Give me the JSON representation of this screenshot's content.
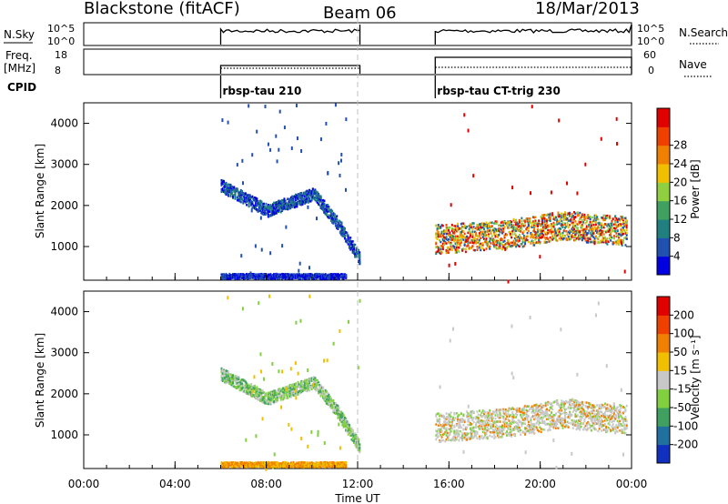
{
  "header": {
    "station": "Blackstone (fitACF)",
    "beam": "Beam 06",
    "date": "18/Mar/2013"
  },
  "top_panel": {
    "nsky_label": "N.Sky",
    "nsky_ticks": [
      "10^5",
      "10^0"
    ],
    "nsearch_label": "N.Search",
    "nsearch_ticks": [
      "10^5",
      "10^0"
    ],
    "freq_label": "Freq.",
    "freq_unit": "[MHz]",
    "freq_ticks": [
      "18",
      "8"
    ],
    "nave_label": "Nave",
    "nave_ticks": [
      "60",
      "0"
    ],
    "cpid_label": "CPID",
    "cpid_entries": [
      {
        "start_h": 6.0,
        "label": "rbsp-tau 210"
      },
      {
        "start_h": 15.4,
        "label": "rbsp-tau CT-trig 230"
      }
    ]
  },
  "chart_data": [
    {
      "type": "heatmap",
      "name": "power",
      "ylabel": "Slant Range [km]",
      "ylim": [
        180,
        4500
      ],
      "xlim": [
        0,
        24
      ],
      "yticks": [
        "1000",
        "2000",
        "3000",
        "4000"
      ],
      "colorbar_label": "Power [dB]",
      "colorbar_ticks": [
        "4",
        "8",
        "12",
        "16",
        "20",
        "24",
        "28"
      ],
      "colorbar_colors": [
        "#0000e0",
        "#2050b0",
        "#208080",
        "#40a060",
        "#90d040",
        "#f0c000",
        "#f08000",
        "#f04000",
        "#e00000"
      ],
      "scatter_bands": [
        {
          "t0": 6.0,
          "t1": 12.1,
          "r_center": [
            2500,
            2200,
            1900,
            2100,
            2300,
            1600,
            700
          ],
          "spread": 150,
          "colors": [
            "#2050b0",
            "#0000e0",
            "#208080"
          ]
        },
        {
          "t0": 6.0,
          "t1": 11.5,
          "r_center": [
            300,
            300,
            300,
            300,
            300,
            300,
            300
          ],
          "spread": 60,
          "colors": [
            "#2050b0",
            "#0000e0"
          ]
        },
        {
          "t0": 15.4,
          "t1": 23.8,
          "r_center": [
            1200,
            1250,
            1300,
            1400,
            1550,
            1450,
            1400
          ],
          "spread": 350,
          "colors": [
            "#e00000",
            "#f04000",
            "#f08000",
            "#f0c000",
            "#90d040",
            "#208080",
            "#2050b0"
          ]
        }
      ]
    },
    {
      "type": "heatmap",
      "name": "velocity",
      "ylabel": "Slant Range [km]",
      "ylim": [
        180,
        4500
      ],
      "xlim": [
        0,
        24
      ],
      "yticks": [
        "1000",
        "2000",
        "3000",
        "4000"
      ],
      "colorbar_label": "Velocity [m s⁻¹]",
      "colorbar_ticks": [
        "200",
        "100",
        "50",
        "15",
        "-15",
        "-50",
        "-100",
        "-200"
      ],
      "colorbar_colors": [
        "#1030c0",
        "#2070a0",
        "#40a060",
        "#80d040",
        "#c8c8c8",
        "#f0c000",
        "#f08000",
        "#f04000",
        "#e00000"
      ],
      "scatter_bands": [
        {
          "t0": 6.0,
          "t1": 12.1,
          "r_center": [
            2500,
            2200,
            1900,
            2100,
            2300,
            1600,
            700
          ],
          "spread": 150,
          "colors": [
            "#80d040",
            "#40a060",
            "#c8c8c8"
          ]
        },
        {
          "t0": 6.0,
          "t1": 11.5,
          "r_center": [
            300,
            300,
            300,
            300,
            300,
            300,
            300
          ],
          "spread": 60,
          "colors": [
            "#f0c000",
            "#f08000"
          ]
        },
        {
          "t0": 15.4,
          "t1": 23.8,
          "r_center": [
            1200,
            1250,
            1300,
            1400,
            1550,
            1450,
            1400
          ],
          "spread": 350,
          "colors": [
            "#c8c8c8",
            "#c8c8c8",
            "#c8c8c8",
            "#80d040",
            "#f08000"
          ]
        }
      ]
    }
  ],
  "x_axis": {
    "ticks": [
      "00:00",
      "04:00",
      "08:00",
      "12:00",
      "16:00",
      "20:00",
      "00:00"
    ],
    "label": "Time UT"
  },
  "colors": {
    "axis": "#000000",
    "noon_line": "#c0c0c0"
  }
}
